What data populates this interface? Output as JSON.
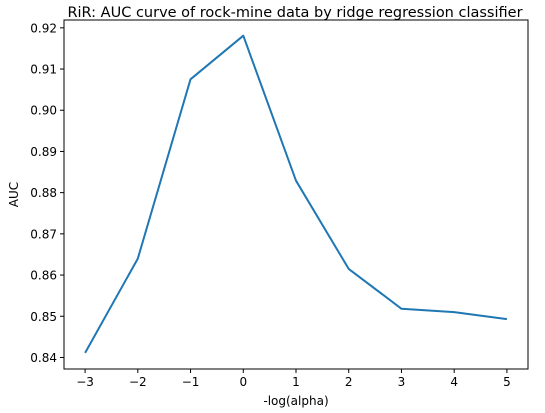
{
  "chart_data": {
    "type": "line",
    "title": "RiR: AUC curve of rock-mine data by ridge regression classifier",
    "xlabel": "-log(alpha)",
    "ylabel": "AUC",
    "xlim": [
      -3.4,
      5.4
    ],
    "ylim": [
      0.8372,
      0.9219
    ],
    "xticks": [
      "-3",
      "-2",
      "-1",
      "0",
      "1",
      "2",
      "3",
      "4",
      "5"
    ],
    "yticks": [
      "0.84",
      "0.85",
      "0.86",
      "0.87",
      "0.88",
      "0.89",
      "0.90",
      "0.91",
      "0.92"
    ],
    "grid": false,
    "series": [
      {
        "color": "#1f77b4",
        "x": [
          -3,
          -2,
          -1,
          0,
          1,
          2,
          3,
          4,
          5
        ],
        "y": [
          0.8411,
          0.864,
          0.9075,
          0.9181,
          0.8829,
          0.8615,
          0.8518,
          0.851,
          0.8493
        ]
      }
    ]
  }
}
